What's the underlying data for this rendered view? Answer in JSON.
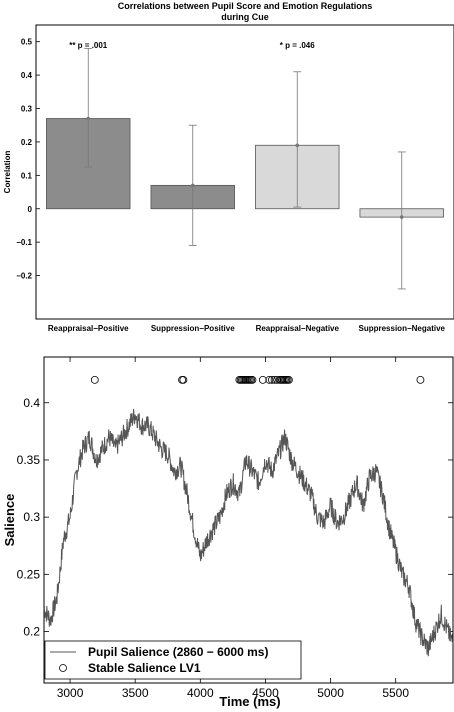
{
  "chart_data": [
    {
      "type": "bar",
      "title": "Correlations between Pupil Score and Emotion Regulations",
      "subtitle": "during Cue",
      "xlabel": "",
      "ylabel": "Correlation",
      "ylim": [
        -0.33,
        0.55
      ],
      "yticks": [
        "0.5",
        "0.4",
        "0.3",
        "0.2",
        "0.1",
        "0",
        "−0.1",
        "−0.2"
      ],
      "ytick_values": [
        0.5,
        0.4,
        0.3,
        0.2,
        0.1,
        0,
        -0.1,
        -0.2
      ],
      "categories": [
        "Reappraisal−Positive",
        "Suppression−Positive",
        "Reappraisal−Negative",
        "Suppression−Negative"
      ],
      "values": [
        0.27,
        0.07,
        0.19,
        -0.025
      ],
      "err_low": [
        0.125,
        -0.11,
        0.005,
        -0.24
      ],
      "err_high": [
        0.48,
        0.25,
        0.41,
        0.17
      ],
      "bar_colors": [
        "#8c8c8c",
        "#8c8c8c",
        "#d9d9d9",
        "#d9d9d9"
      ],
      "annotations": [
        {
          "text": "** p = .001",
          "category_index": 0
        },
        {
          "text": "* p = .046",
          "category_index": 2
        }
      ],
      "grid": false
    },
    {
      "type": "line",
      "title": "",
      "xlabel": "Time (ms)",
      "ylabel": "Salience",
      "xlim": [
        2800,
        5940
      ],
      "ylim": [
        0.155,
        0.44
      ],
      "xticks": [
        3000,
        3500,
        4000,
        4500,
        5000,
        5500
      ],
      "xtick_labels": [
        "3000",
        "3500",
        "4000",
        "4500",
        "5000",
        "5500"
      ],
      "yticks": [
        0.2,
        0.25,
        0.3,
        0.35,
        0.4
      ],
      "ytick_labels": [
        "0.2",
        "0.25",
        "0.3",
        "0.35",
        "0.4"
      ],
      "series": [
        {
          "name": "Pupil Salience (2860 − 6000 ms)",
          "style": "line",
          "color": "#555555",
          "x": [
            2800,
            2850,
            2900,
            2950,
            3000,
            3050,
            3100,
            3150,
            3200,
            3250,
            3300,
            3350,
            3400,
            3450,
            3500,
            3550,
            3600,
            3650,
            3700,
            3750,
            3800,
            3850,
            3900,
            3950,
            4000,
            4050,
            4100,
            4150,
            4200,
            4250,
            4300,
            4350,
            4400,
            4450,
            4500,
            4550,
            4600,
            4650,
            4700,
            4750,
            4800,
            4850,
            4900,
            4950,
            5000,
            5050,
            5100,
            5150,
            5200,
            5250,
            5300,
            5350,
            5400,
            5450,
            5500,
            5550,
            5600,
            5650,
            5700,
            5750,
            5800,
            5850,
            5900,
            5940
          ],
          "y": [
            0.22,
            0.21,
            0.23,
            0.28,
            0.3,
            0.34,
            0.36,
            0.37,
            0.35,
            0.36,
            0.37,
            0.36,
            0.37,
            0.38,
            0.39,
            0.38,
            0.38,
            0.37,
            0.36,
            0.355,
            0.34,
            0.345,
            0.32,
            0.29,
            0.265,
            0.28,
            0.29,
            0.3,
            0.32,
            0.33,
            0.32,
            0.35,
            0.34,
            0.33,
            0.35,
            0.34,
            0.355,
            0.37,
            0.35,
            0.34,
            0.33,
            0.32,
            0.3,
            0.295,
            0.31,
            0.295,
            0.3,
            0.315,
            0.33,
            0.31,
            0.335,
            0.34,
            0.32,
            0.29,
            0.27,
            0.25,
            0.24,
            0.21,
            0.195,
            0.185,
            0.2,
            0.215,
            0.2,
            0.19
          ]
        },
        {
          "name": "Stable Salience LV1",
          "style": "marker",
          "marker": "open-circle",
          "x": [
            3190,
            3860,
            3870,
            4300,
            4310,
            4320,
            4330,
            4340,
            4350,
            4360,
            4370,
            4380,
            4390,
            4400,
            4480,
            4530,
            4550,
            4570,
            4590,
            4610,
            4620,
            4630,
            4640,
            4650,
            4660,
            4670,
            4680,
            5690
          ],
          "y": [
            0.42,
            0.42,
            0.42,
            0.42,
            0.42,
            0.42,
            0.42,
            0.42,
            0.42,
            0.42,
            0.42,
            0.42,
            0.42,
            0.42,
            0.42,
            0.42,
            0.42,
            0.42,
            0.42,
            0.42,
            0.42,
            0.42,
            0.42,
            0.42,
            0.42,
            0.42,
            0.42,
            0.42
          ]
        }
      ],
      "legend": "bottom-left",
      "grid": false
    }
  ]
}
